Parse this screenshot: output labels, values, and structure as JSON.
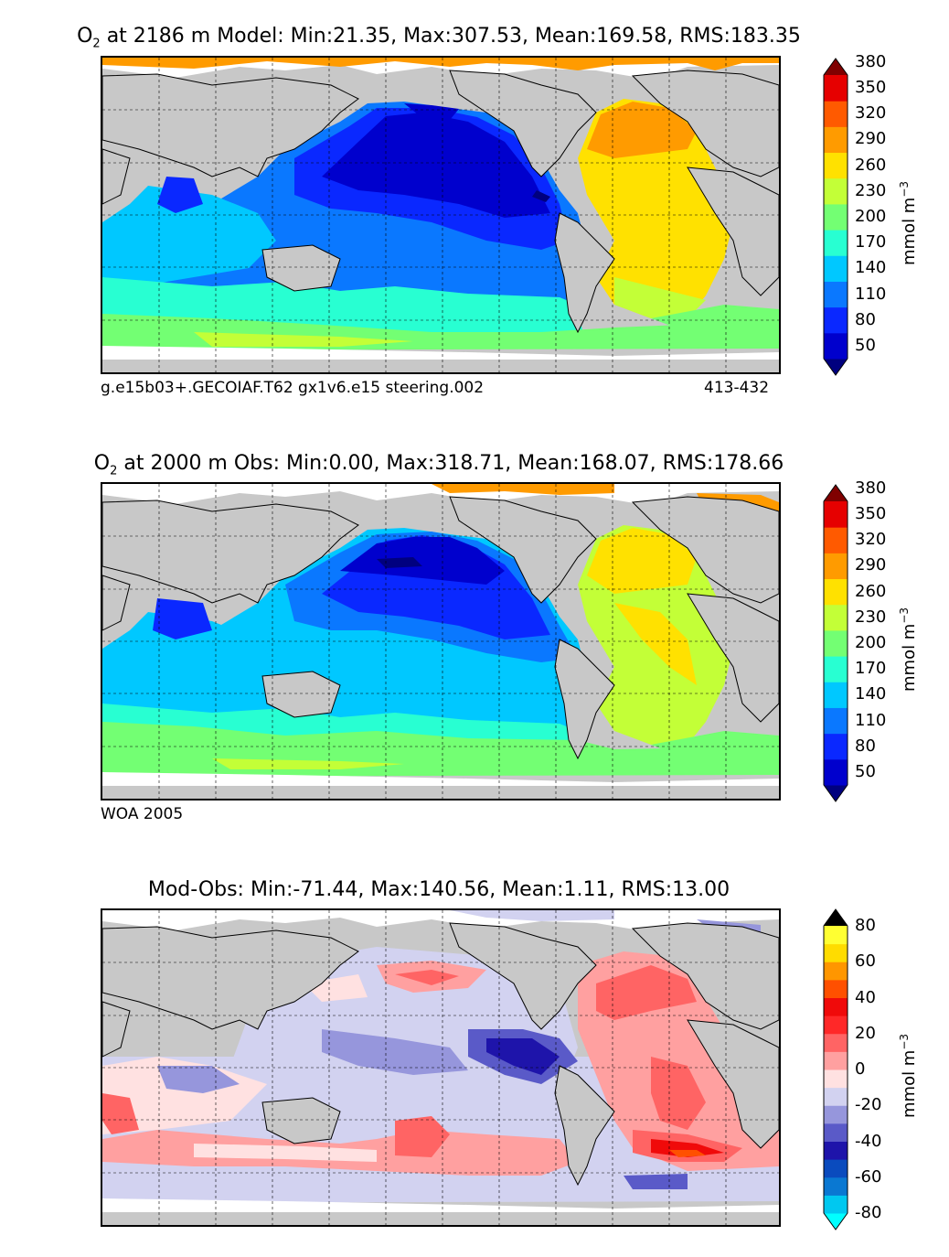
{
  "panels": [
    {
      "title_prefix": "O",
      "title_sub": "2",
      "title_rest": " at 2186 m Model: Min:21.35, Max:307.53, Mean:169.58, RMS:183.35",
      "caption_left": "g.e15b03+.GECOIAF.T62 gx1v6.e15 steering.002",
      "caption_right": "413-432",
      "units": "mmol m",
      "units_sup": "−3"
    },
    {
      "title_prefix": "O",
      "title_sub": "2",
      "title_rest": " at 2000 m Obs: Min:0.00, Max:318.71, Mean:168.07, RMS:178.66",
      "caption_left": "WOA 2005",
      "caption_right": "",
      "units": "mmol m",
      "units_sup": "−3"
    },
    {
      "title_prefix": "",
      "title_sub": "",
      "title_rest": "Mod-Obs: Min:-71.44, Max:140.56, Mean:1.11, RMS:13.00",
      "caption_left": "",
      "caption_right": "",
      "units": "mmol m",
      "units_sup": "−3"
    }
  ],
  "chart_data": [
    {
      "type": "heatmap",
      "title": "O2 at 2186 m Model: Min:21.35, Max:307.53, Mean:169.58, RMS:183.35",
      "variable": "O2",
      "depth_m": 2186,
      "stats": {
        "min": 21.35,
        "max": 307.53,
        "mean": 169.58,
        "rms": 183.35
      },
      "colorbar": {
        "levels": [
          50,
          80,
          110,
          140,
          170,
          200,
          230,
          260,
          290,
          320,
          350,
          380
        ],
        "colors": [
          "#00007f",
          "#0000cd",
          "#0a28ff",
          "#0a78ff",
          "#00c8ff",
          "#28ffd2",
          "#73ff73",
          "#c3ff37",
          "#ffe100",
          "#ff9b00",
          "#ff5a00",
          "#e60000",
          "#800000"
        ],
        "extend": "both",
        "units": "mmol m^-3"
      },
      "caption_left": "g.e15b03+.GECOIAF.T62 gx1v6.e15 steering.002",
      "caption_right": "413-432"
    },
    {
      "type": "heatmap",
      "title": "O2 at 2000 m Obs: Min:0.00, Max:318.71, Mean:168.07, RMS:178.66",
      "variable": "O2",
      "depth_m": 2000,
      "stats": {
        "min": 0.0,
        "max": 318.71,
        "mean": 168.07,
        "rms": 178.66
      },
      "colorbar": {
        "levels": [
          50,
          80,
          110,
          140,
          170,
          200,
          230,
          260,
          290,
          320,
          350,
          380
        ],
        "colors": [
          "#00007f",
          "#0000cd",
          "#0a28ff",
          "#0a78ff",
          "#00c8ff",
          "#28ffd2",
          "#73ff73",
          "#c3ff37",
          "#ffe100",
          "#ff9b00",
          "#ff5a00",
          "#e60000",
          "#800000"
        ],
        "extend": "both",
        "units": "mmol m^-3"
      },
      "caption_left": "WOA 2005"
    },
    {
      "type": "heatmap",
      "title": "Mod-Obs: Min:-71.44, Max:140.56, Mean:1.11, RMS:13.00",
      "variable": "O2 difference",
      "stats": {
        "min": -71.44,
        "max": 140.56,
        "mean": 1.11,
        "rms": 13.0
      },
      "colorbar": {
        "levels": [
          -80,
          -70,
          -60,
          -50,
          -40,
          -30,
          -20,
          -10,
          0,
          10,
          20,
          30,
          40,
          50,
          60,
          70,
          80
        ],
        "tick_labels": [
          -80,
          -60,
          -40,
          -20,
          0,
          20,
          40,
          60,
          80
        ],
        "colors": [
          "#00ffff",
          "#00c8f0",
          "#0a78d2",
          "#0a4bbe",
          "#1e14aa",
          "#5a5ac8",
          "#9696dc",
          "#d2d2f0",
          "#ffe1e1",
          "#ffa0a0",
          "#ff6464",
          "#ff2828",
          "#f00a0a",
          "#ff5000",
          "#ff9600",
          "#ffdc00",
          "#ffff32",
          "#000000"
        ],
        "extend": "both",
        "units": "mmol m^-3"
      }
    }
  ]
}
